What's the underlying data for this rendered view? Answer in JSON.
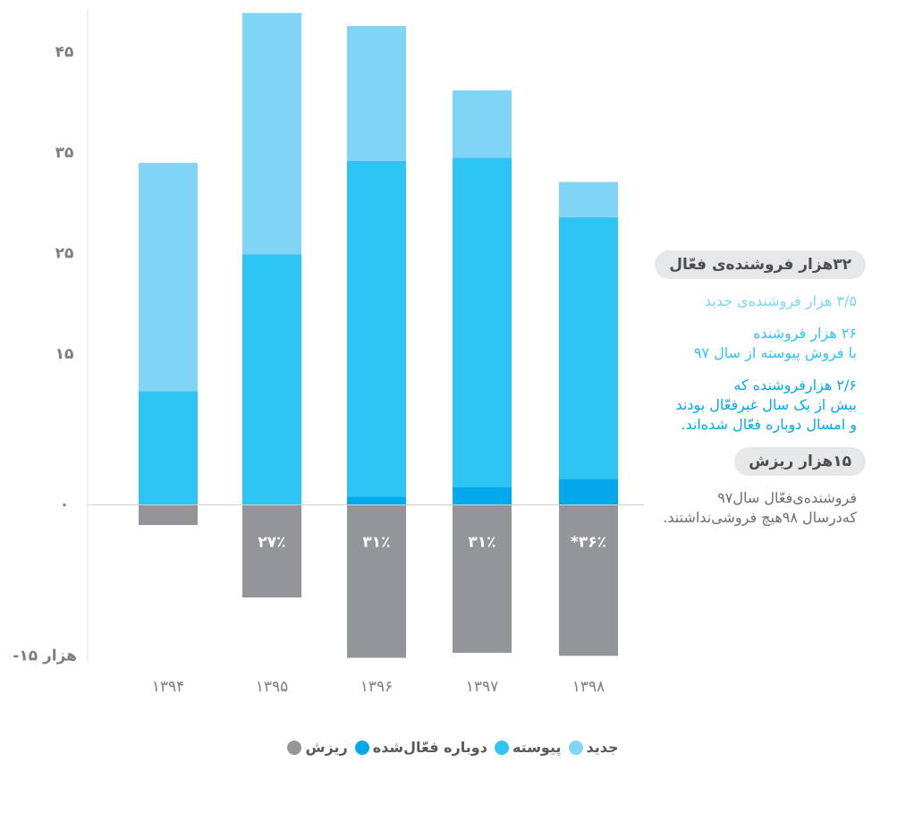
{
  "chart_data": {
    "type": "bar",
    "categories": [
      "۱۳۹۴",
      "۱۳۹۵",
      "۱۳۹۶",
      "۱۳۹۷",
      "۱۳۹۸"
    ],
    "series": [
      {
        "name": "دوباره فعّال‌شده",
        "color": "#04a9ec",
        "values": [
          0,
          0,
          0.8,
          1.8,
          2.6
        ]
      },
      {
        "name": "پیوسته",
        "color": "#2ec5f5",
        "values": [
          11.3,
          24.9,
          33.4,
          32.7,
          26
        ]
      },
      {
        "name": "جدید",
        "color": "#80d4f6",
        "values": [
          22.7,
          24,
          13.4,
          6.7,
          3.5
        ]
      },
      {
        "name": "ریزش",
        "color": "#939598",
        "values": [
          -2,
          -9.2,
          -15.2,
          -14.7,
          -15
        ],
        "rates": [
          null,
          {
            "value": 27,
            "label": "۲۷٪"
          },
          {
            "value": 31,
            "label": "۳۱٪"
          },
          {
            "value": 31,
            "label": "۳۱٪"
          },
          {
            "value": 36,
            "label": "*۳۶٪"
          }
        ]
      }
    ],
    "legend_order": [
      2,
      1,
      0,
      3
    ],
    "ylim": [
      -15.6,
      49.3
    ],
    "yticks": [
      {
        "value": 45,
        "label": "۴۵"
      },
      {
        "value": 35,
        "label": "۳۵"
      },
      {
        "value": 25,
        "label": "۲۵"
      },
      {
        "value": 15,
        "label": "۱۵"
      },
      {
        "value": 0,
        "label": "۰"
      },
      {
        "value": -15,
        "label": "-۱۵ هزار"
      }
    ],
    "annotations": [
      {
        "kind": "pill",
        "lines": [
          "۳۲هزار فروشنده‌ی فعّال"
        ]
      },
      {
        "kind": "text",
        "color": "#80d4f6",
        "lines": [
          "۳/۵ هزار فروشنده‌ی جدید"
        ]
      },
      {
        "kind": "text",
        "color": "#2ec5f5",
        "lines": [
          "۲۶ هزار فروشنده",
          "با فروش پیوسته از سال ۹۷"
        ]
      },
      {
        "kind": "text",
        "color": "#04a9ec",
        "lines": [
          "۲/۶ هزارفروشنده که",
          "بیش از یک سال غیرفعّال بودند",
          "و امسال دوباره فعّال شده‌اند."
        ]
      },
      {
        "kind": "pill",
        "lines": [
          "۱۵هزار ریزش"
        ]
      },
      {
        "kind": "text",
        "color": "#6d6e71",
        "lines": [
          "فروشنده‌ی‌فعّال سال۹۷",
          "که‌درسال ۹۸هیچ فروشی‌نداشتند."
        ]
      }
    ]
  }
}
